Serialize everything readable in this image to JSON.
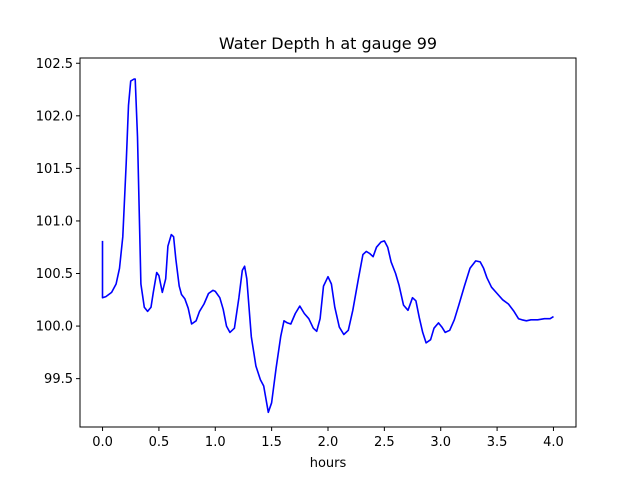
{
  "chart_data": {
    "type": "line",
    "title": "Water Depth h at gauge 99",
    "xlabel": "hours",
    "ylabel": "",
    "xlim": [
      -0.2,
      4.2
    ],
    "ylim": [
      99.04,
      102.55
    ],
    "x_ticks": [
      0.0,
      0.5,
      1.0,
      1.5,
      2.0,
      2.5,
      3.0,
      3.5,
      4.0
    ],
    "x_tick_labels": [
      "0.0",
      "0.5",
      "1.0",
      "1.5",
      "2.0",
      "2.5",
      "3.0",
      "3.5",
      "4.0"
    ],
    "y_ticks": [
      99.5,
      100.0,
      100.5,
      101.0,
      101.5,
      102.0,
      102.5
    ],
    "y_tick_labels": [
      "99.5",
      "100.0",
      "100.5",
      "101.0",
      "101.5",
      "102.0",
      "102.5"
    ],
    "grid": false,
    "legend": "none",
    "series": [
      {
        "color": "#0000ff",
        "x": [
          0.0,
          0.0,
          0.03,
          0.08,
          0.12,
          0.15,
          0.18,
          0.21,
          0.23,
          0.25,
          0.28,
          0.29,
          0.31,
          0.34,
          0.37,
          0.4,
          0.43,
          0.45,
          0.48,
          0.5,
          0.53,
          0.56,
          0.58,
          0.61,
          0.63,
          0.65,
          0.68,
          0.7,
          0.73,
          0.76,
          0.79,
          0.83,
          0.86,
          0.9,
          0.94,
          0.98,
          1.0,
          1.04,
          1.07,
          1.1,
          1.13,
          1.17,
          1.21,
          1.24,
          1.26,
          1.28,
          1.32,
          1.36,
          1.4,
          1.43,
          1.47,
          1.5,
          1.54,
          1.58,
          1.61,
          1.64,
          1.67,
          1.71,
          1.75,
          1.79,
          1.83,
          1.87,
          1.9,
          1.93,
          1.96,
          2.0,
          2.03,
          2.06,
          2.1,
          2.14,
          2.18,
          2.22,
          2.27,
          2.31,
          2.34,
          2.37,
          2.4,
          2.43,
          2.47,
          2.5,
          2.53,
          2.56,
          2.6,
          2.63,
          2.67,
          2.71,
          2.75,
          2.78,
          2.81,
          2.84,
          2.87,
          2.91,
          2.94,
          2.98,
          3.01,
          3.04,
          3.08,
          3.12,
          3.16,
          3.21,
          3.26,
          3.31,
          3.35,
          3.38,
          3.41,
          3.45,
          3.5,
          3.55,
          3.6,
          3.65,
          3.69,
          3.72,
          3.76,
          3.8,
          3.86,
          3.92,
          3.97,
          4.0
        ],
        "y": [
          100.81,
          100.27,
          100.28,
          100.32,
          100.4,
          100.55,
          100.85,
          101.55,
          102.1,
          102.33,
          102.35,
          102.35,
          101.8,
          100.4,
          100.18,
          100.14,
          100.18,
          100.32,
          100.51,
          100.48,
          100.32,
          100.45,
          100.76,
          100.87,
          100.85,
          100.64,
          100.38,
          100.3,
          100.26,
          100.17,
          100.02,
          100.05,
          100.14,
          100.21,
          100.31,
          100.34,
          100.33,
          100.27,
          100.16,
          100.0,
          99.94,
          99.98,
          100.27,
          100.53,
          100.57,
          100.45,
          99.9,
          99.62,
          99.49,
          99.43,
          99.18,
          99.27,
          99.6,
          99.9,
          100.05,
          100.03,
          100.02,
          100.12,
          100.19,
          100.12,
          100.07,
          99.98,
          99.95,
          100.07,
          100.38,
          100.47,
          100.4,
          100.18,
          99.99,
          99.92,
          99.96,
          100.15,
          100.45,
          100.68,
          100.71,
          100.69,
          100.66,
          100.75,
          100.8,
          100.81,
          100.75,
          100.61,
          100.5,
          100.39,
          100.2,
          100.15,
          100.27,
          100.24,
          100.08,
          99.94,
          99.84,
          99.87,
          99.98,
          100.03,
          99.99,
          99.94,
          99.96,
          100.06,
          100.2,
          100.38,
          100.55,
          100.62,
          100.61,
          100.55,
          100.46,
          100.37,
          100.31,
          100.25,
          100.21,
          100.14,
          100.07,
          100.06,
          100.05,
          100.06,
          100.06,
          100.07,
          100.07,
          100.09
        ]
      }
    ]
  }
}
